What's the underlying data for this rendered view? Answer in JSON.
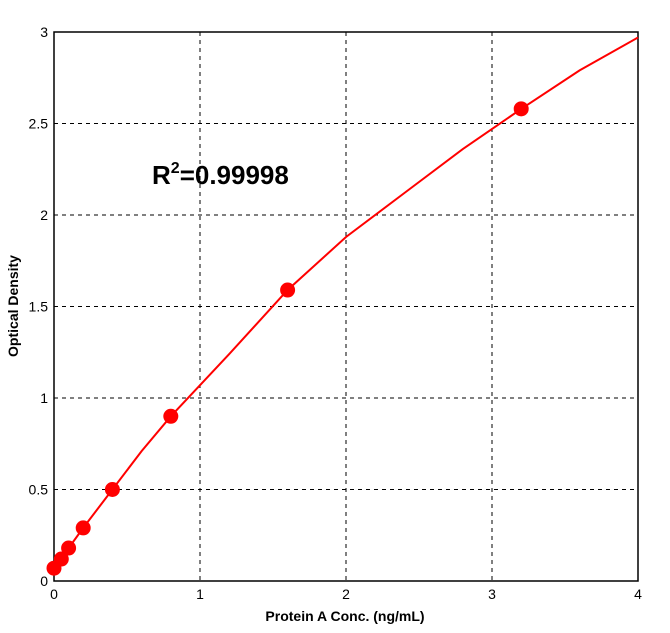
{
  "chart_data": {
    "type": "scatter",
    "title": "",
    "xlabel": "Protein A Conc. (ng/mL)",
    "ylabel": "Optical Density",
    "xlim": [
      0,
      4
    ],
    "ylim": [
      0,
      3
    ],
    "xticks": [
      "0",
      "1",
      "2",
      "3",
      "4"
    ],
    "yticks": [
      "0",
      "0.5",
      "1",
      "1.5",
      "2",
      "2.5",
      "3"
    ],
    "grid": true,
    "grid_style": "dashed",
    "color": "#ff0000",
    "annotation": {
      "base": "R",
      "sup": "2",
      "rest": "=0.99998"
    },
    "series": [
      {
        "points": [
          {
            "x": 0,
            "y": 0.07
          },
          {
            "x": 0.05,
            "y": 0.12
          },
          {
            "x": 0.1,
            "y": 0.18
          },
          {
            "x": 0.2,
            "y": 0.29
          },
          {
            "x": 0.4,
            "y": 0.5
          },
          {
            "x": 0.8,
            "y": 0.9
          },
          {
            "x": 1.6,
            "y": 1.59
          },
          {
            "x": 3.2,
            "y": 2.58
          }
        ]
      }
    ],
    "fit_curve": {
      "points": [
        {
          "x": 0,
          "y": 0.07
        },
        {
          "x": 0.1,
          "y": 0.18
        },
        {
          "x": 0.2,
          "y": 0.29
        },
        {
          "x": 0.4,
          "y": 0.5
        },
        {
          "x": 0.6,
          "y": 0.71
        },
        {
          "x": 0.8,
          "y": 0.9
        },
        {
          "x": 1.0,
          "y": 1.07
        },
        {
          "x": 1.2,
          "y": 1.24
        },
        {
          "x": 1.6,
          "y": 1.59
        },
        {
          "x": 2.0,
          "y": 1.88
        },
        {
          "x": 2.4,
          "y": 2.12
        },
        {
          "x": 2.8,
          "y": 2.36
        },
        {
          "x": 3.2,
          "y": 2.58
        },
        {
          "x": 3.6,
          "y": 2.79
        },
        {
          "x": 4.0,
          "y": 2.97
        }
      ]
    }
  }
}
